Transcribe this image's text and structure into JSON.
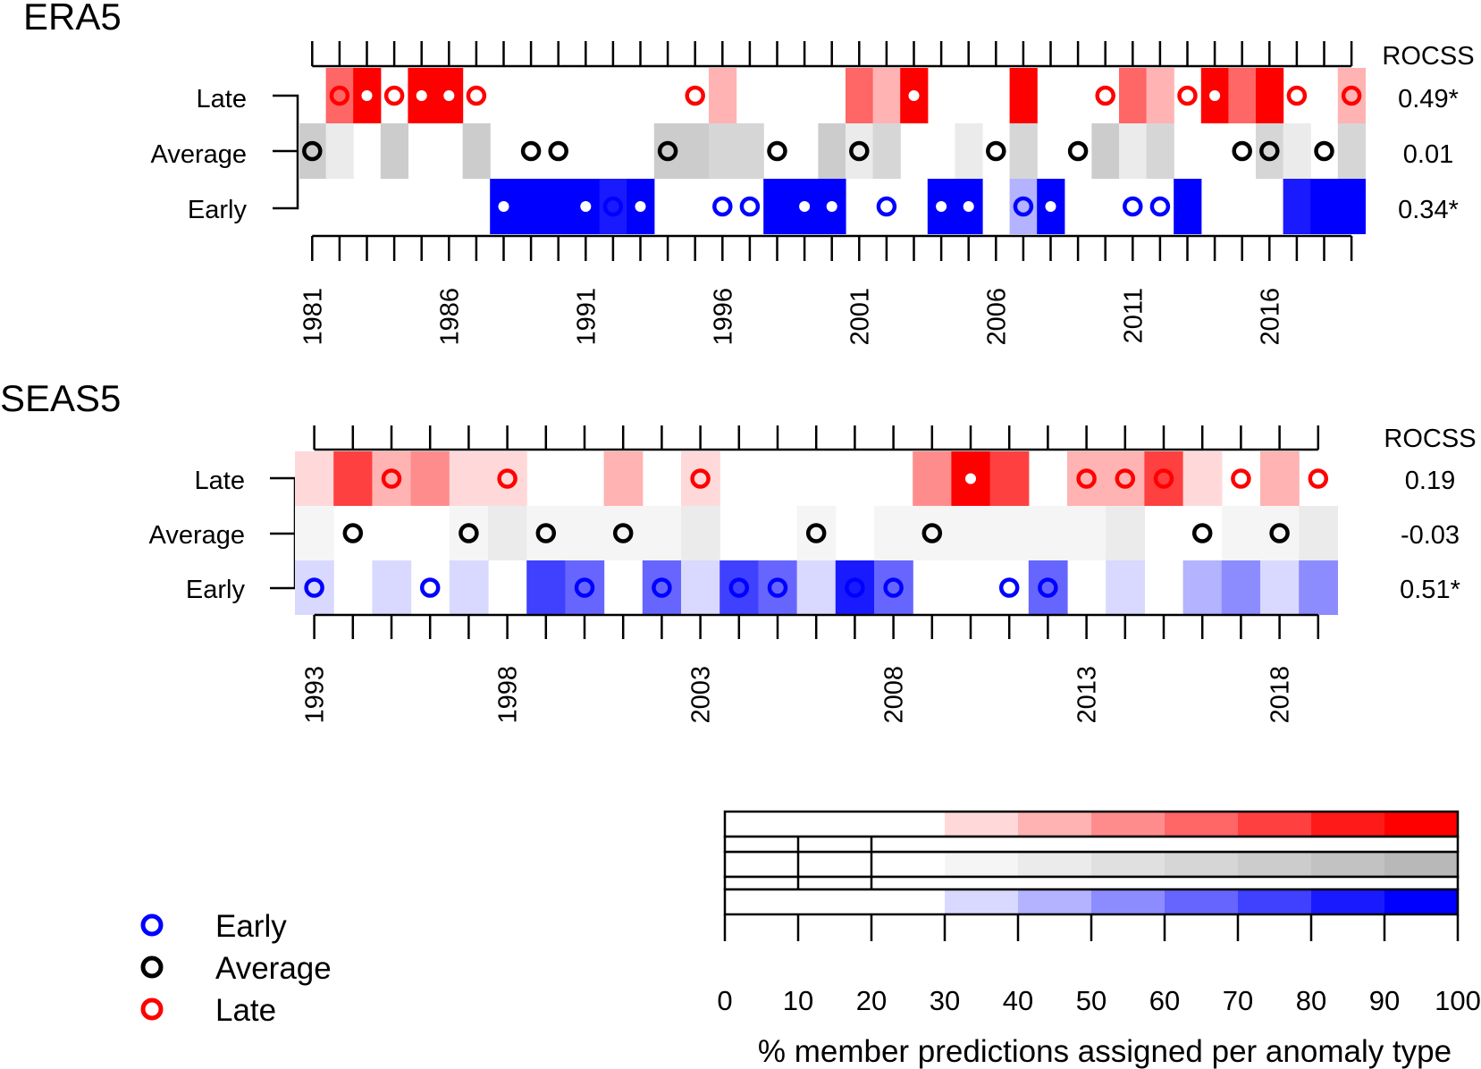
{
  "chart_data": [
    {
      "type": "heatmap",
      "title": "ERA5",
      "rows": [
        "Late",
        "Average",
        "Early"
      ],
      "score_label": "ROCSS",
      "scores": [
        "0.49*",
        "0.01",
        "0.34*"
      ],
      "years": [
        1981,
        1982,
        1983,
        1984,
        1985,
        1986,
        1987,
        1988,
        1989,
        1990,
        1991,
        1992,
        1993,
        1994,
        1995,
        1996,
        1997,
        1998,
        1999,
        2000,
        2001,
        2002,
        2003,
        2004,
        2005,
        2006,
        2007,
        2008,
        2009,
        2010,
        2011,
        2012,
        2013,
        2014,
        2015,
        2016,
        2017,
        2018,
        2019
      ],
      "tick_labels": [
        "1981",
        "1986",
        "1991",
        "1996",
        "2001",
        "2006",
        "2011",
        "2016"
      ],
      "tick_years": [
        1981,
        1986,
        1991,
        1996,
        2001,
        2006,
        2011,
        2016
      ],
      "pct_late": [
        0,
        60,
        100,
        0,
        100,
        100,
        0,
        0,
        0,
        0,
        0,
        0,
        0,
        0,
        0,
        40,
        0,
        0,
        0,
        0,
        60,
        40,
        100,
        0,
        0,
        0,
        100,
        0,
        0,
        0,
        60,
        40,
        0,
        100,
        60,
        100,
        0,
        0,
        40
      ],
      "pct_average": [
        70,
        40,
        0,
        70,
        0,
        0,
        70,
        0,
        0,
        0,
        0,
        0,
        0,
        70,
        70,
        60,
        60,
        0,
        0,
        70,
        40,
        60,
        0,
        0,
        40,
        0,
        60,
        0,
        0,
        70,
        40,
        60,
        0,
        0,
        0,
        60,
        40,
        0,
        60
      ],
      "pct_early": [
        0,
        0,
        0,
        0,
        0,
        0,
        0,
        100,
        100,
        100,
        100,
        80,
        100,
        0,
        0,
        0,
        0,
        100,
        100,
        100,
        0,
        0,
        0,
        100,
        100,
        0,
        40,
        100,
        0,
        0,
        0,
        0,
        100,
        0,
        0,
        0,
        80,
        100,
        100
      ],
      "observed": [
        "average",
        "late",
        "late",
        "late",
        "late",
        "late",
        "late",
        "early",
        "average",
        "average",
        "early",
        "early",
        "early",
        "average",
        "late",
        "early",
        "early",
        "average",
        "early",
        "early",
        "average",
        "early",
        "late",
        "early",
        "early",
        "average",
        "early",
        "early",
        "average",
        "late",
        "early",
        "early",
        "late",
        "late",
        "average",
        "average",
        "late",
        "average",
        "late"
      ]
    },
    {
      "type": "heatmap",
      "title": "SEAS5",
      "rows": [
        "Late",
        "Average",
        "Early"
      ],
      "score_label": "ROCSS",
      "scores": [
        "0.19",
        "-0.03",
        "0.51*"
      ],
      "years": [
        1993,
        1994,
        1995,
        1996,
        1997,
        1998,
        1999,
        2000,
        2001,
        2002,
        2003,
        2004,
        2005,
        2006,
        2007,
        2008,
        2009,
        2010,
        2011,
        2012,
        2013,
        2014,
        2015,
        2016,
        2017,
        2018,
        2019
      ],
      "tick_labels": [
        "1993",
        "1998",
        "2003",
        "2008",
        "2013",
        "2018"
      ],
      "tick_years": [
        1993,
        1998,
        2003,
        2008,
        2013,
        2018
      ],
      "pct_late": [
        30,
        70,
        40,
        50,
        30,
        30,
        0,
        0,
        40,
        0,
        30,
        0,
        0,
        0,
        0,
        0,
        50,
        90,
        70,
        0,
        40,
        40,
        70,
        30,
        0,
        40,
        0
      ],
      "pct_average": [
        30,
        0,
        0,
        0,
        30,
        40,
        30,
        30,
        30,
        30,
        40,
        0,
        0,
        30,
        0,
        30,
        30,
        30,
        30,
        30,
        30,
        40,
        0,
        0,
        30,
        30,
        40
      ],
      "pct_early": [
        30,
        0,
        30,
        0,
        30,
        0,
        70,
        60,
        0,
        60,
        30,
        70,
        60,
        30,
        80,
        60,
        0,
        0,
        0,
        60,
        0,
        30,
        0,
        40,
        50,
        30,
        50
      ],
      "observed": [
        "early",
        "average",
        "late",
        "early",
        "average",
        "late",
        "average",
        "early",
        "average",
        "early",
        "late",
        "early",
        "early",
        "average",
        "early",
        "early",
        "average",
        "late",
        "early",
        "early",
        "late",
        "late",
        "late",
        "average",
        "late",
        "average",
        "late"
      ]
    }
  ],
  "legend": {
    "items": [
      {
        "label": "Early",
        "color": "#0000ff"
      },
      {
        "label": "Average",
        "color": "#000000"
      },
      {
        "label": "Late",
        "color": "#ff0000"
      }
    ]
  },
  "colorbar": {
    "ticks": [
      "0",
      "10",
      "20",
      "30",
      "40",
      "50",
      "60",
      "70",
      "80",
      "90",
      "100"
    ],
    "label": "% member predictions assigned per anomaly type",
    "late_colors": [
      "#ffffff",
      "#ffffff",
      "#ffffff",
      "#ffd9d9",
      "#ffb3b3",
      "#ff8c8c",
      "#ff6666",
      "#ff4040",
      "#ff1a1a",
      "#ff0000"
    ],
    "average_colors": [
      "#ffffff",
      "#ffffff",
      "#ffffff",
      "#f5f5f5",
      "#ebebeb",
      "#e0e0e0",
      "#d6d6d6",
      "#cccccc",
      "#c2c2c2",
      "#b8b8b8"
    ],
    "early_colors": [
      "#ffffff",
      "#ffffff",
      "#ffffff",
      "#d9d9ff",
      "#b3b3ff",
      "#8c8cff",
      "#6666ff",
      "#4040ff",
      "#1a1aff",
      "#0000ff"
    ]
  }
}
